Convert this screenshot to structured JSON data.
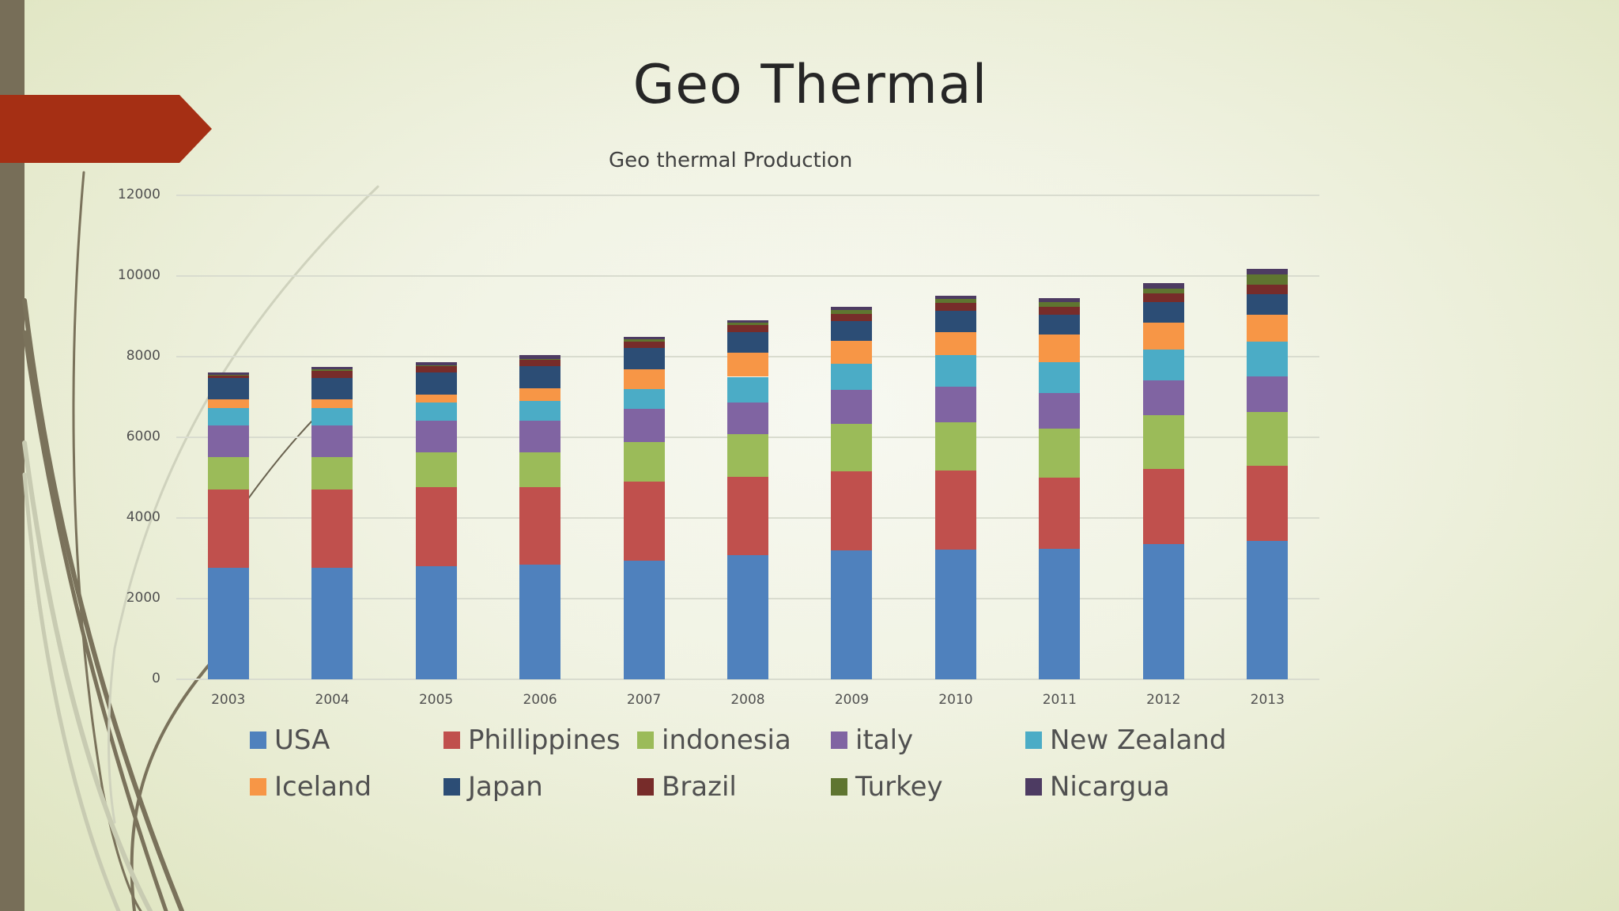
{
  "slide": {
    "title": "Geo Thermal",
    "colors": {
      "accent_banner": "#a52f14",
      "side_bar": "#776e58"
    }
  },
  "chart_data": {
    "type": "bar",
    "stacked": true,
    "title": "Geo thermal Production",
    "xlabel": "",
    "ylabel": "",
    "ylim": [
      0,
      12000
    ],
    "yticks": [
      0,
      2000,
      4000,
      6000,
      8000,
      10000,
      12000
    ],
    "ytick_labels": [
      "0",
      "2000",
      "4000",
      "6000",
      "8000",
      "10000",
      "12000"
    ],
    "grid": true,
    "legend_position": "bottom",
    "categories": [
      "2003",
      "2004",
      "2005",
      "2006",
      "2007",
      "2008",
      "2009",
      "2010",
      "2011",
      "2012",
      "2013"
    ],
    "series": [
      {
        "name": "USA",
        "color": "#4f81bd",
        "values": [
          2770,
          2770,
          2800,
          2840,
          2940,
          3070,
          3200,
          3220,
          3230,
          3360,
          3430
        ]
      },
      {
        "name": "Phillippines",
        "color": "#c0504d",
        "values": [
          1940,
          1940,
          1970,
          1930,
          1960,
          1950,
          1950,
          1960,
          1770,
          1850,
          1860
        ]
      },
      {
        "name": "indonesia",
        "color": "#9bbb59",
        "values": [
          800,
          800,
          860,
          850,
          980,
          1050,
          1190,
          1200,
          1220,
          1340,
          1340
        ]
      },
      {
        "name": "italy",
        "color": "#8064a2",
        "values": [
          790,
          790,
          790,
          800,
          820,
          800,
          840,
          880,
          880,
          860,
          880
        ]
      },
      {
        "name": "New Zealand",
        "color": "#4bacc6",
        "values": [
          430,
          430,
          440,
          490,
          500,
          630,
          640,
          770,
          770,
          770,
          860
        ]
      },
      {
        "name": "Iceland",
        "color": "#f79646",
        "values": [
          210,
          210,
          200,
          310,
          480,
          590,
          570,
          580,
          670,
          670,
          670
        ]
      },
      {
        "name": "Japan",
        "color": "#2c4d75",
        "values": [
          530,
          530,
          540,
          540,
          540,
          520,
          500,
          520,
          500,
          500,
          510
        ]
      },
      {
        "name": "Brazil",
        "color": "#772c2a",
        "values": [
          50,
          170,
          160,
          160,
          160,
          180,
          170,
          200,
          200,
          210,
          240
        ]
      },
      {
        "name": "Turkey",
        "color": "#5f7530",
        "values": [
          20,
          40,
          30,
          30,
          50,
          50,
          90,
          100,
          120,
          120,
          240
        ]
      },
      {
        "name": "Nicargua",
        "color": "#4d3b62",
        "values": [
          60,
          70,
          70,
          80,
          70,
          70,
          90,
          80,
          90,
          150,
          150
        ]
      }
    ]
  }
}
